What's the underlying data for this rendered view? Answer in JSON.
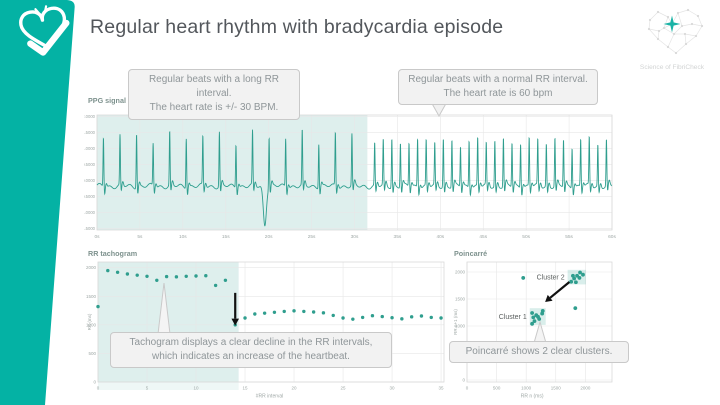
{
  "slide": {
    "title": "Regular heart rhythm with bradycardia episode",
    "logo_text": "Science of FibriCheck"
  },
  "colors": {
    "brand_teal": "#04b2a4",
    "series_teal": "#2f9e8e",
    "highlight_fill": "rgba(47,158,142,0.16)",
    "grid": "#e7e7e7",
    "plot_border": "#d9d9d9",
    "axis_text": "#9fa8a6",
    "chart_title_text": "#7e928e",
    "callout_text": "#8f9699",
    "callout_bg": "#f2f2f2",
    "callout_border": "#c9c9c9",
    "title_text": "#53575c",
    "arrow": "#111111"
  },
  "icons": {
    "banner": "heart-check-icon",
    "logo": "network-heart-icon"
  },
  "callouts": {
    "ppg_long": {
      "line1": "Regular beats with a long RR interval.",
      "line2": "The heart rate is +/- 30 BPM."
    },
    "ppg_normal": {
      "line1": "Regular beats with a normal RR interval.",
      "line2": "The heart rate is 60 bpm"
    },
    "tachogram": {
      "line1": "Tachogram displays a clear decline in the  RR intervals,",
      "line2": "which indicates an increase of the heartbeat."
    },
    "poincare": {
      "line1": "Poincarré shows 2 clear clusters."
    }
  },
  "chart_data": [
    {
      "id": "ppg",
      "type": "line",
      "title": "PPG signal",
      "x_ticks": [
        "0s",
        "5s",
        "10s",
        "15s",
        "20s",
        "25s",
        "30s",
        "35s",
        "40s",
        "45s",
        "50s",
        "55s",
        "60s"
      ],
      "y_ticks": [
        "2.0000",
        "1.5000",
        "1.0000",
        "0.5000",
        "0.0000",
        "-0.5000",
        "-1.0000",
        "-1.5000"
      ],
      "x_range_s": [
        0,
        60
      ],
      "y_range": [
        -1.55,
        2.05
      ],
      "highlight_x_s": [
        0,
        31.5
      ],
      "segments": [
        {
          "label": "bradycardia",
          "t_start": 0.75,
          "t_end": 31.6,
          "rr_s": 1.93,
          "bpm": 31
        },
        {
          "label": "normal",
          "t_start": 32.35,
          "t_end": 60.0,
          "rr_s": 1.0,
          "bpm": 60
        }
      ],
      "anomaly": {
        "t": 19.55,
        "min_value": -1.4
      }
    },
    {
      "id": "tachogram",
      "type": "scatter",
      "title": "RR tachogram",
      "xlabel": "#RR interval",
      "ylabel": "RR (ms)",
      "x_ticks": [
        0,
        5,
        10,
        15,
        20,
        25,
        30,
        35
      ],
      "y_ticks": [
        0,
        500,
        1000,
        1500,
        2000
      ],
      "x_range": [
        0,
        35.3
      ],
      "y_range": [
        0,
        2100
      ],
      "highlight_x": [
        0,
        14.35
      ],
      "values": [
        1320,
        1950,
        1920,
        1890,
        1870,
        1850,
        1780,
        1845,
        1840,
        1850,
        1855,
        1860,
        1690,
        1780,
        1000,
        1120,
        1190,
        1205,
        1220,
        1235,
        1245,
        1235,
        1225,
        1210,
        1165,
        1120,
        1100,
        1130,
        1160,
        1145,
        1125,
        1105,
        1140,
        1155,
        1130,
        1120
      ],
      "arrow": {
        "x": 14,
        "y_from": 1560,
        "y_to": 1110
      }
    },
    {
      "id": "poincare",
      "type": "scatter2d",
      "title": "Poincarré",
      "xlabel": "RR n (ms)",
      "ylabel": "RR n+1 (ms)",
      "x_ticks": [
        0,
        500,
        1000,
        1500,
        2000
      ],
      "y_ticks": [
        0,
        500,
        1000,
        1500,
        2000
      ],
      "x_range": [
        0,
        2450
      ],
      "y_range": [
        0,
        2185
      ],
      "clusters": [
        {
          "label": "Cluster 1",
          "box": [
            1060,
            1020,
            1330,
            1330
          ],
          "points": [
            [
              1120,
              1160
            ],
            [
              1170,
              1200
            ],
            [
              1220,
              1130
            ],
            [
              1270,
              1230
            ],
            [
              1140,
              1090
            ],
            [
              1200,
              1170
            ],
            [
              1280,
              1280
            ],
            [
              1100,
              1240
            ]
          ]
        },
        {
          "label": "Cluster 2",
          "box": [
            1700,
            1770,
            2010,
            2040
          ],
          "points": [
            [
              1760,
              1820
            ],
            [
              1810,
              1880
            ],
            [
              1860,
              1930
            ],
            [
              1910,
              1990
            ],
            [
              1840,
              1810
            ],
            [
              1900,
              1890
            ],
            [
              1960,
              1950
            ],
            [
              1790,
              1930
            ]
          ]
        }
      ],
      "outliers": [
        [
          950,
          1890
        ],
        [
          1830,
          1330
        ],
        [
          1100,
          1040
        ]
      ],
      "arrow": {
        "from": [
          1730,
          1815
        ],
        "to": [
          1320,
          1445
        ]
      }
    }
  ]
}
